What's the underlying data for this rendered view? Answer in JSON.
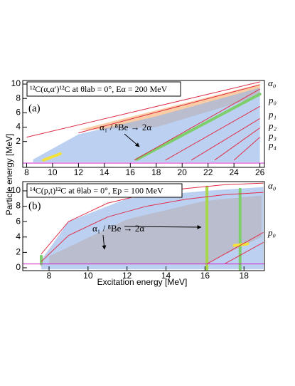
{
  "axis_labels": {
    "x": "Excitation energy [MeV]",
    "y": "Particle energy [MeV]"
  },
  "chart_data": [
    {
      "type": "density",
      "panel_label": "(a)",
      "title": "¹²C(α,α′)¹²C at θlab = 0°, Eα = 200 MeV",
      "annotation": "α₁ / ⁸Be → 2α",
      "xlim": [
        7.7,
        26.35
      ],
      "ylim": [
        -1.6,
        10.5
      ],
      "xticks": [
        8,
        10,
        12,
        14,
        16,
        18,
        20,
        22,
        24,
        26
      ],
      "yticks": [
        2,
        4,
        6,
        8,
        10
      ],
      "regions": [
        {
          "color": "#f9c89b",
          "x": [
            12,
            26,
            26,
            18
          ],
          "y": [
            3.6,
            10,
            8.3,
            4
          ]
        },
        {
          "color": "#8fb2ea",
          "x": [
            8.5,
            12,
            18,
            26,
            26,
            8.5
          ],
          "y": [
            -0.5,
            3,
            5.5,
            9.5,
            -0.9,
            -0.9
          ]
        }
      ],
      "loci": [
        {
          "color": "#7ccf6a",
          "x": [
            16.5,
            26
          ],
          "y": [
            -0.5,
            8.6
          ]
        },
        {
          "color": "#f2e23a",
          "x": [
            9.3,
            10.6
          ],
          "y": [
            -0.6,
            0.3
          ]
        }
      ],
      "boundaries": [
        {
          "color": "#e0304a",
          "x": [
            8,
            26
          ],
          "y": [
            2.6,
            10.3
          ]
        },
        {
          "color": "#e0304a",
          "x": [
            12,
            26
          ],
          "y": [
            3.2,
            9.9
          ]
        },
        {
          "color": "#e0304a",
          "x": [
            16.3,
            26
          ],
          "y": [
            -0.6,
            9.3
          ]
        },
        {
          "color": "#e0304a",
          "x": [
            18.7,
            26
          ],
          "y": [
            -0.6,
            6.9
          ]
        },
        {
          "color": "#e0304a",
          "x": [
            20.7,
            26
          ],
          "y": [
            -0.6,
            5.2
          ]
        },
        {
          "color": "#e0304a",
          "x": [
            22.5,
            26
          ],
          "y": [
            -0.6,
            3.9
          ]
        },
        {
          "color": "#e0304a",
          "x": [
            24,
            26
          ],
          "y": [
            -0.6,
            2.6
          ]
        },
        {
          "color": "#d020d0",
          "x": [
            7.7,
            26.35
          ],
          "y": [
            -1.0,
            -1.0
          ]
        }
      ],
      "line_labels": [
        "α₀",
        "p₀",
        "p₁",
        "p₂",
        "p₃",
        "p₄"
      ]
    },
    {
      "type": "density",
      "panel_label": "(b)",
      "title": "¹⁴C(p,t)¹²C at θlab = 0°, Ep = 100 MeV",
      "annotation": "α₁ / ⁸Be → 2α",
      "xlim": [
        6.65,
        19.05
      ],
      "ylim": [
        -0.37,
        11.2
      ],
      "xticks": [
        8,
        10,
        12,
        14,
        16,
        18
      ],
      "yticks": [
        0,
        2,
        4,
        6,
        8,
        10
      ],
      "regions": [
        {
          "color": "#f9c89b",
          "x": [
            8,
            12,
            16,
            18.9,
            18.9,
            16,
            12,
            8
          ],
          "y": [
            1.5,
            6.3,
            8.7,
            9.4,
            4,
            0.5,
            0.5,
            0.5
          ]
        },
        {
          "color": "#8fb2ea",
          "x": [
            7.6,
            9,
            12,
            16,
            19,
            19,
            7.6
          ],
          "y": [
            1,
            6,
            9,
            10,
            10.5,
            -0.2,
            -0.2
          ]
        }
      ],
      "loci": [
        {
          "color": "#a8d84a",
          "x": [
            16.1,
            16.1
          ],
          "y": [
            -0.2,
            10.5
          ]
        },
        {
          "color": "#7ccf6a",
          "x": [
            17.8,
            17.8
          ],
          "y": [
            -0.2,
            10.2
          ]
        },
        {
          "color": "#f2e23a",
          "x": [
            17.5,
            18.2
          ],
          "y": [
            2.9,
            3.1
          ]
        },
        {
          "color": "#7ccf6a",
          "x": [
            7.6,
            7.6
          ],
          "y": [
            0.5,
            1.5
          ]
        }
      ],
      "boundaries": [
        {
          "color": "#e0304a",
          "x": [
            7.6,
            9,
            11,
            13,
            15,
            17,
            19
          ],
          "y": [
            1.8,
            6,
            8.4,
            9.6,
            10.3,
            10.8,
            11
          ]
        },
        {
          "color": "#e0304a",
          "x": [
            7.6,
            9,
            11,
            13,
            15,
            17,
            19
          ],
          "y": [
            0.8,
            4.2,
            6.6,
            8,
            8.9,
            9.5,
            9.8
          ]
        },
        {
          "color": "#e0304a",
          "x": [
            16.1,
            19
          ],
          "y": [
            0.5,
            4.6
          ]
        },
        {
          "color": "#e0304a",
          "x": [
            17,
            19
          ],
          "y": [
            0.5,
            3.3
          ]
        },
        {
          "color": "#d020d0",
          "x": [
            6.65,
            19.05
          ],
          "y": [
            0.5,
            0.5
          ]
        }
      ],
      "line_labels": [
        "α₀",
        "p₀"
      ]
    }
  ]
}
